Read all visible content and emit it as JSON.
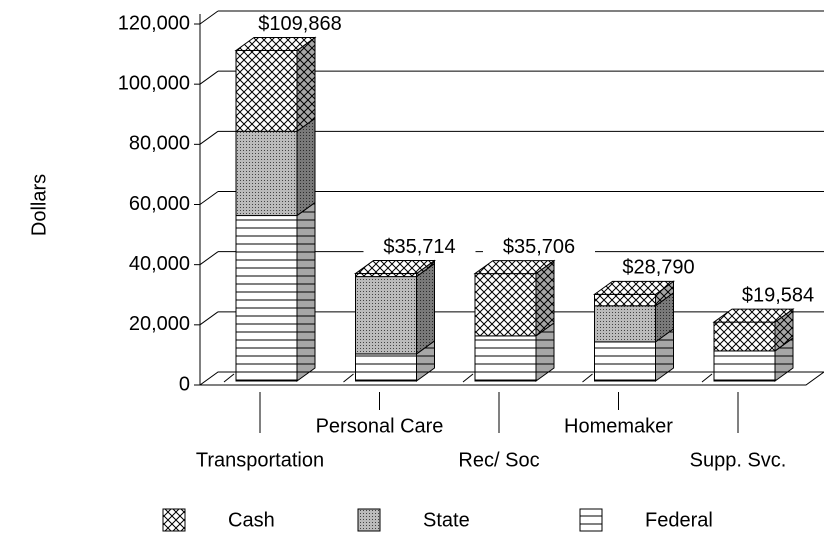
{
  "chart_data": {
    "type": "bar3d_stacked",
    "ylabel": "Dollars",
    "categories": [
      "Transportation",
      "Personal Care",
      "Rec/ Soc",
      "Homemaker",
      "Supp. Svc."
    ],
    "series": [
      {
        "name": "Federal",
        "pattern": "hlines",
        "values": [
          55000,
          9000,
          15000,
          13000,
          10000
        ]
      },
      {
        "name": "State",
        "pattern": "dots",
        "values": [
          28000,
          25714,
          0,
          12000,
          0
        ]
      },
      {
        "name": "Cash",
        "pattern": "crosshatch",
        "values": [
          26868,
          1000,
          20706,
          3790,
          9584
        ]
      }
    ],
    "totals": [
      109868,
      35714,
      35706,
      28790,
      19584
    ],
    "total_labels": [
      "$109,868",
      "$35,714",
      "$35,706",
      "$28,790",
      "$19,584"
    ],
    "ylim": [
      0,
      120000
    ],
    "yticks": [
      0,
      {
        "value": 20000,
        "label": "20,000"
      },
      {
        "value": 40000,
        "label": "40,000"
      },
      {
        "value": 60000,
        "label": "60,000"
      },
      {
        "value": 80000,
        "label": "80,000"
      },
      {
        "value": 100000,
        "label": "100,000"
      },
      {
        "value": 120000,
        "label": "120,000"
      }
    ],
    "grid": true
  }
}
